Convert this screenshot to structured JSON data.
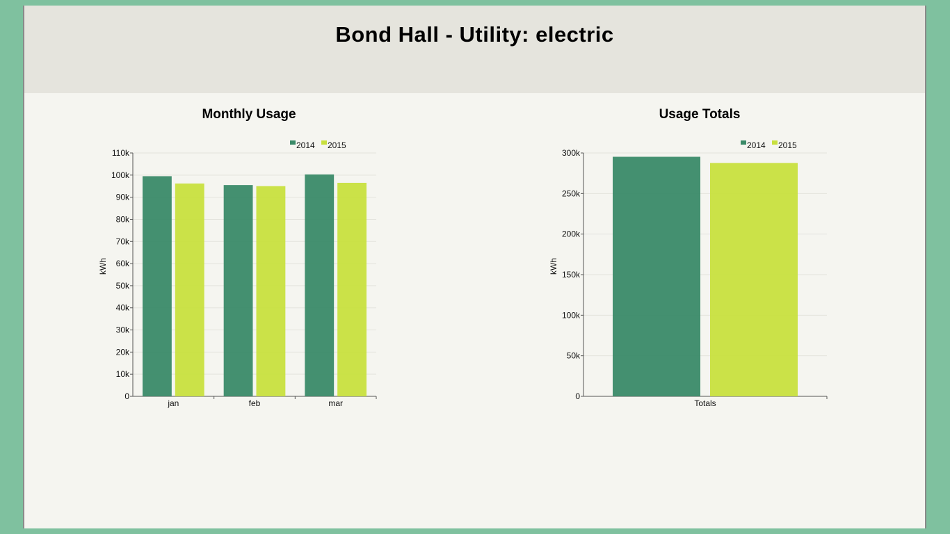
{
  "page": {
    "title": "Bond Hall - Utility: electric"
  },
  "colors": {
    "series_2014": "#3a8a68",
    "series_2015": "#c8e03e",
    "background": "#7fc19f",
    "panel": "#f5f5f0",
    "header": "#e5e4dd"
  },
  "chart_data": [
    {
      "type": "bar",
      "title": "Monthly Usage",
      "ylabel": "kWh",
      "xlabel": "",
      "categories": [
        "jan",
        "feb",
        "mar"
      ],
      "series": [
        {
          "name": "2014",
          "values": [
            99500,
            95500,
            100300
          ]
        },
        {
          "name": "2015",
          "values": [
            96200,
            95000,
            96500
          ]
        }
      ],
      "ylim": [
        0,
        110000
      ],
      "yticks": [
        0,
        10000,
        20000,
        30000,
        40000,
        50000,
        60000,
        70000,
        80000,
        90000,
        100000,
        110000
      ],
      "ytick_labels": [
        "0",
        "10k",
        "20k",
        "30k",
        "40k",
        "50k",
        "60k",
        "70k",
        "80k",
        "90k",
        "100k",
        "110k"
      ],
      "grid": true,
      "legend": "top-right"
    },
    {
      "type": "bar",
      "title": "Usage Totals",
      "ylabel": "kWh",
      "xlabel": "",
      "categories": [
        "Totals"
      ],
      "series": [
        {
          "name": "2014",
          "values": [
            295300
          ]
        },
        {
          "name": "2015",
          "values": [
            287700
          ]
        }
      ],
      "ylim": [
        0,
        300000
      ],
      "yticks": [
        0,
        50000,
        100000,
        150000,
        200000,
        250000,
        300000
      ],
      "ytick_labels": [
        "0",
        "50k",
        "100k",
        "150k",
        "200k",
        "250k",
        "300k"
      ],
      "grid": true,
      "legend": "top-right"
    }
  ]
}
